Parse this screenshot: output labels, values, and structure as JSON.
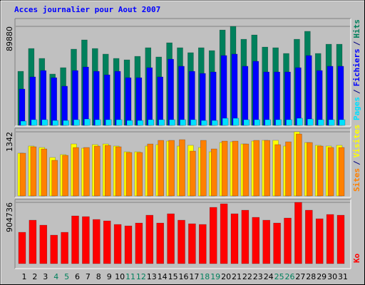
{
  "chart_data": [
    {
      "type": "bar",
      "title": "Acces journalier pour Aout 2007",
      "legend_separator": "/",
      "ylim": [
        0,
        89880
      ],
      "yticks": [
        89880
      ],
      "series": [
        {
          "name": "Hits",
          "color": "#00805c",
          "values": [
            49100,
            69800,
            60800,
            46600,
            52400,
            69200,
            77600,
            69800,
            64700,
            60800,
            59500,
            62700,
            70500,
            62100,
            75000,
            70500,
            66000,
            70500,
            67900,
            86600,
            89880,
            78200,
            82100,
            71100,
            70500,
            65300,
            78200,
            85400,
            65300,
            73700,
            73700
          ]
        },
        {
          "name": "Fichiers",
          "color": "#0000ff",
          "values": [
            33000,
            44000,
            49800,
            43300,
            35600,
            49800,
            53000,
            49100,
            45900,
            49100,
            43300,
            43300,
            52400,
            44000,
            60100,
            53700,
            49100,
            47200,
            48500,
            63400,
            64700,
            53700,
            58200,
            48500,
            48500,
            48500,
            52400,
            63400,
            49800,
            53700,
            53700
          ]
        },
        {
          "name": "Pages",
          "color": "#00e0ff",
          "values": [
            3900,
            5200,
            5200,
            4500,
            4500,
            5200,
            5800,
            5200,
            5200,
            5200,
            4500,
            4500,
            5200,
            5200,
            5200,
            5200,
            5200,
            4500,
            4500,
            6500,
            6500,
            5200,
            5200,
            5200,
            5200,
            5200,
            6500,
            5800,
            5200,
            5200,
            5200
          ]
        }
      ]
    },
    {
      "type": "bar",
      "legend_separator": "/",
      "ylim": [
        0,
        1342
      ],
      "yticks": [
        1342
      ],
      "series": [
        {
          "name": "Visites",
          "color": "#ffff00",
          "values": [
            895,
            1044,
            1014,
            805,
            865,
            1088,
            999,
            1074,
            1088,
            1044,
            924,
            924,
            1044,
            1074,
            1148,
            1044,
            1059,
            1014,
            924,
            1118,
            1133,
            1088,
            1148,
            1163,
            1163,
            1044,
            1342,
            1118,
            1059,
            1044,
            1059
          ]
        },
        {
          "name": "Sites",
          "color": "#ff8000",
          "values": [
            895,
            1029,
            984,
            746,
            850,
            1014,
            1014,
            1044,
            1059,
            1029,
            910,
            910,
            1088,
            1163,
            1163,
            1178,
            939,
            1163,
            984,
            1148,
            1148,
            1088,
            1163,
            1163,
            1074,
            1133,
            1297,
            1118,
            1044,
            1014,
            1014
          ]
        }
      ]
    },
    {
      "type": "bar",
      "ylim": [
        0,
        904736
      ],
      "yticks": [
        904736
      ],
      "categories": [
        "1",
        "2",
        "3",
        "4",
        "5",
        "6",
        "7",
        "8",
        "9",
        "10",
        "11",
        "12",
        "13",
        "14",
        "15",
        "16",
        "17",
        "18",
        "19",
        "20",
        "21",
        "22",
        "23",
        "24",
        "25",
        "26",
        "27",
        "28",
        "29",
        "30",
        "31"
      ],
      "category_colors": [
        "#000000",
        "#000000",
        "#000000",
        "#00805c",
        "#00805c",
        "#000000",
        "#000000",
        "#000000",
        "#000000",
        "#000000",
        "#00805c",
        "#00805c",
        "#000000",
        "#000000",
        "#000000",
        "#000000",
        "#000000",
        "#00805c",
        "#00805c",
        "#000000",
        "#000000",
        "#000000",
        "#000000",
        "#000000",
        "#00805c",
        "#00805c",
        "#000000",
        "#000000",
        "#000000",
        "#000000",
        "#000000"
      ],
      "series": [
        {
          "name": "Ko",
          "color": "#ff0000",
          "values": [
            462900,
            641700,
            568100,
            420800,
            462900,
            704800,
            694300,
            652200,
            631200,
            578600,
            557600,
            599600,
            715400,
            599600,
            736400,
            641700,
            589100,
            578600,
            831100,
            883700,
            736400,
            789000,
            683800,
            641700,
            599600,
            673300,
            904736,
            789000,
            662800,
            725900,
            715400
          ]
        }
      ]
    }
  ]
}
